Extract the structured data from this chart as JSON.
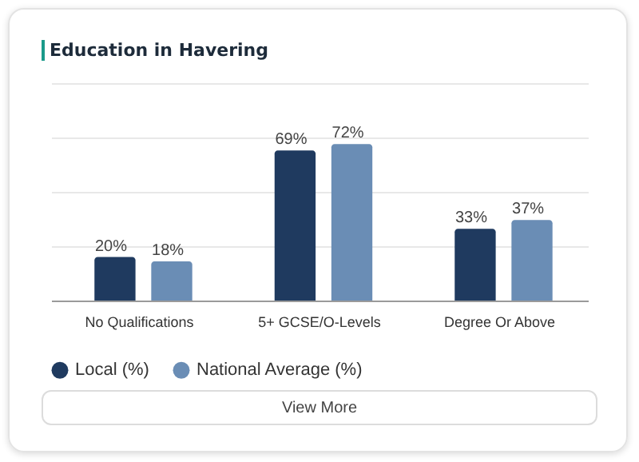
{
  "chart_data": {
    "type": "bar",
    "title": "Education in Havering",
    "categories": [
      "No Qualifications",
      "5+ GCSE/O-Levels",
      "Degree Or Above"
    ],
    "series": [
      {
        "name": "Local (%)",
        "color": "#1f3a5f",
        "values": [
          20,
          69,
          33
        ],
        "value_labels": [
          "20%",
          "69%",
          "33%"
        ]
      },
      {
        "name": "National Average (%)",
        "color": "#6a8db5",
        "values": [
          18,
          72,
          37
        ],
        "value_labels": [
          "18%",
          "72%",
          "37%"
        ]
      }
    ],
    "ylim": [
      0,
      100
    ],
    "yticks": [
      {
        "value": 25,
        "label": null
      },
      {
        "value": 50,
        "label": null
      },
      {
        "value": 75,
        "label": null
      },
      {
        "value": 100,
        "label": null
      }
    ],
    "grid": "y",
    "legend": "bottom",
    "tick_labels": "x",
    "annotations": [
      "View More"
    ]
  }
}
